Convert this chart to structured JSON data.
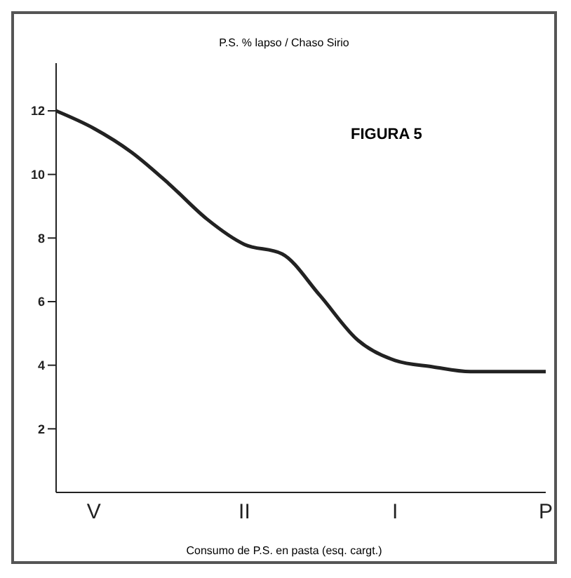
{
  "chart_data": {
    "type": "line",
    "title": "P.S. % lapso / Chaso Sirio",
    "xlabel": "Consumo de P.S. en pasta (esq. cargt.)",
    "annotations": [
      "FIGURA 5"
    ],
    "categories": [
      null,
      "V",
      null,
      null,
      null,
      "II",
      null,
      null,
      null,
      "I",
      null,
      null,
      null,
      "P"
    ],
    "values": [
      12,
      11.45,
      10.7,
      9.7,
      8.6,
      7.8,
      7.5,
      6.2,
      4.8,
      4.15,
      3.95,
      3.8,
      3.8,
      3.8
    ],
    "color": "#222222",
    "ylim": [
      0,
      13.5
    ],
    "yticks": [
      2,
      4,
      6,
      8,
      10,
      12
    ],
    "grid": false,
    "legend": false,
    "marker": "none",
    "line_style": "solid"
  }
}
